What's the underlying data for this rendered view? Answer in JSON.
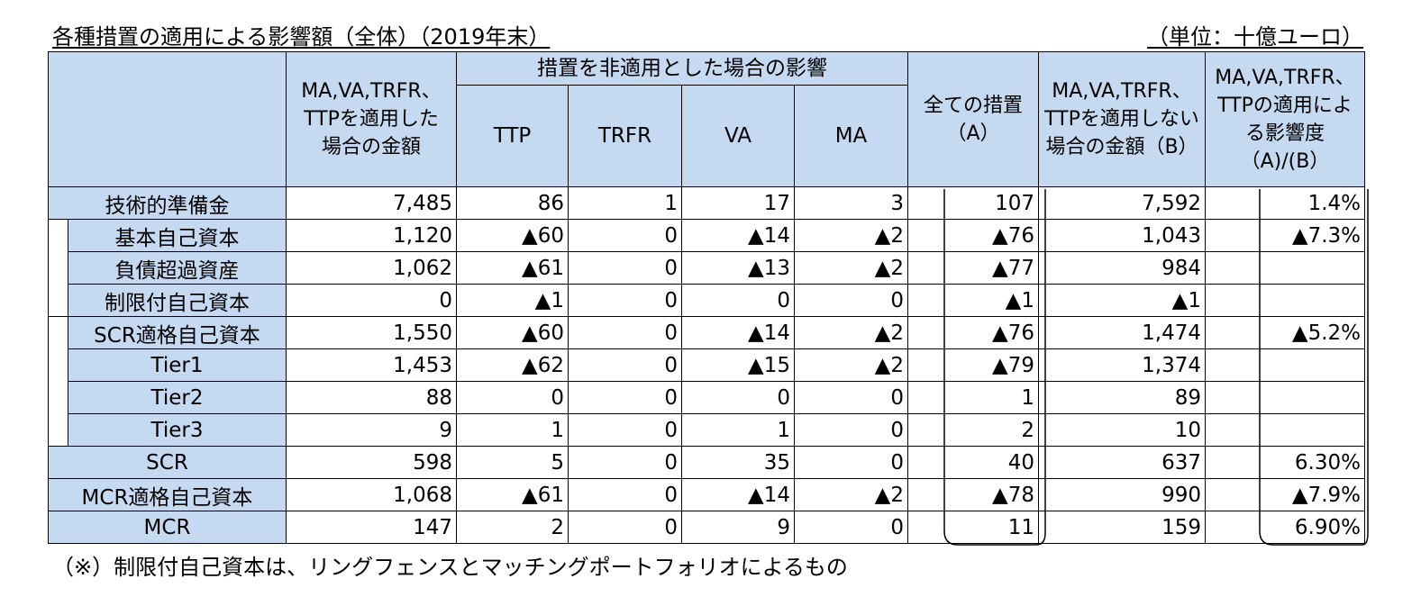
{
  "title": "各種措置の適用による影響額（全体）（2019年末）",
  "unit": "（単位：十億ユーロ）",
  "headers": {
    "applied": "MA,VA,TRFR、TTPを適用した場合の金額",
    "group": "措置を非適用とした場合の影響",
    "ttp": "TTP",
    "trfr": "TRFR",
    "va": "VA",
    "ma": "MA",
    "all": "全ての措置（A）",
    "not_applied": "MA,VA,TRFR、TTPを適用しない場合の金額（B）",
    "ratio": "MA,VA,TRFR、TTPの適用による影響度（A)/(B）"
  },
  "rows": [
    {
      "label": "技術的準備金",
      "applied": "7,485",
      "ttp": "86",
      "trfr": "1",
      "va": "17",
      "ma": "3",
      "all": "107",
      "not_applied": "7,592",
      "ratio": "1.4%"
    },
    {
      "label": "基本自己資本",
      "applied": "1,120",
      "ttp": "▲60",
      "trfr": "0",
      "va": "▲14",
      "ma": "▲2",
      "all": "▲76",
      "not_applied": "1,043",
      "ratio": "▲7.3%"
    },
    {
      "label": "負債超過資産",
      "applied": "1,062",
      "ttp": "▲61",
      "trfr": "0",
      "va": "▲13",
      "ma": "▲2",
      "all": "▲77",
      "not_applied": "984",
      "ratio": ""
    },
    {
      "label": "制限付自己資本",
      "applied": "0",
      "ttp": "▲1",
      "trfr": "0",
      "va": "0",
      "ma": "0",
      "all": "▲1",
      "not_applied": "▲1",
      "ratio": ""
    },
    {
      "label": "SCR適格自己資本",
      "applied": "1,550",
      "ttp": "▲60",
      "trfr": "0",
      "va": "▲14",
      "ma": "▲2",
      "all": "▲76",
      "not_applied": "1,474",
      "ratio": "▲5.2%"
    },
    {
      "label": "Tier1",
      "applied": "1,453",
      "ttp": "▲62",
      "trfr": "0",
      "va": "▲15",
      "ma": "▲2",
      "all": "▲79",
      "not_applied": "1,374",
      "ratio": ""
    },
    {
      "label": "Tier2",
      "applied": "88",
      "ttp": "0",
      "trfr": "0",
      "va": "0",
      "ma": "0",
      "all": "1",
      "not_applied": "89",
      "ratio": ""
    },
    {
      "label": "Tier3",
      "applied": "9",
      "ttp": "1",
      "trfr": "0",
      "va": "1",
      "ma": "0",
      "all": "2",
      "not_applied": "10",
      "ratio": ""
    },
    {
      "label": "SCR",
      "applied": "598",
      "ttp": "5",
      "trfr": "0",
      "va": "35",
      "ma": "0",
      "all": "40",
      "not_applied": "637",
      "ratio": "6.30%"
    },
    {
      "label": "MCR適格自己資本",
      "applied": "1,068",
      "ttp": "▲61",
      "trfr": "0",
      "va": "▲14",
      "ma": "▲2",
      "all": "▲78",
      "not_applied": "990",
      "ratio": "▲7.9%"
    },
    {
      "label": "MCR",
      "applied": "147",
      "ttp": "2",
      "trfr": "0",
      "va": "9",
      "ma": "0",
      "all": "11",
      "not_applied": "159",
      "ratio": "6.90%"
    }
  ],
  "footnote": "（※）制限付自己資本は、リングフェンスとマッチングポートフォリオによるもの"
}
